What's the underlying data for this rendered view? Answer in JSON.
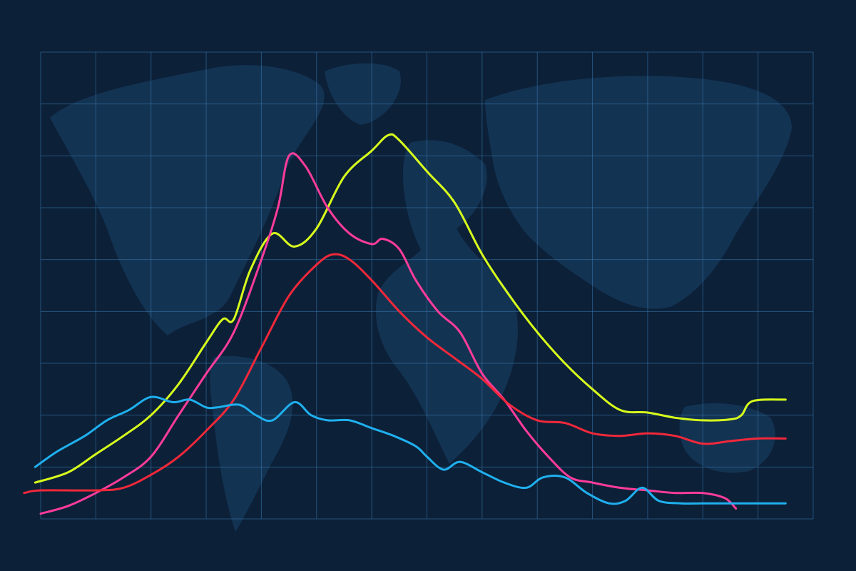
{
  "colors": {
    "background": "#0c2038",
    "land": "#163a5c",
    "grid": "#3a7bb0"
  },
  "chart_data": {
    "type": "line",
    "title": "",
    "xlabel": "",
    "ylabel": "",
    "grid": true,
    "legend": "none",
    "x_range": [
      0,
      14
    ],
    "y_range": [
      0,
      9
    ],
    "series": [
      {
        "color": "#d8ff1c",
        "points": [
          [
            -0.1,
            0.7
          ],
          [
            0.5,
            0.9
          ],
          [
            1,
            1.25
          ],
          [
            1.5,
            1.6
          ],
          [
            2,
            2.0
          ],
          [
            2.5,
            2.6
          ],
          [
            3,
            3.4
          ],
          [
            3.3,
            3.85
          ],
          [
            3.5,
            3.85
          ],
          [
            3.8,
            4.8
          ],
          [
            4.2,
            5.5
          ],
          [
            4.6,
            5.25
          ],
          [
            5,
            5.6
          ],
          [
            5.5,
            6.6
          ],
          [
            6,
            7.1
          ],
          [
            6.3,
            7.4
          ],
          [
            6.5,
            7.3
          ],
          [
            7,
            6.7
          ],
          [
            7.5,
            6.1
          ],
          [
            8,
            5.1
          ],
          [
            8.5,
            4.3
          ],
          [
            9,
            3.6
          ],
          [
            9.5,
            3.0
          ],
          [
            10,
            2.5
          ],
          [
            10.5,
            2.1
          ],
          [
            11,
            2.05
          ],
          [
            11.5,
            1.95
          ],
          [
            12,
            1.9
          ],
          [
            12.5,
            1.92
          ],
          [
            12.7,
            2.0
          ],
          [
            12.9,
            2.27
          ],
          [
            13.5,
            2.3
          ]
        ]
      },
      {
        "color": "#ff3c9a",
        "points": [
          [
            0,
            0.1
          ],
          [
            0.5,
            0.25
          ],
          [
            1,
            0.5
          ],
          [
            1.5,
            0.8
          ],
          [
            2,
            1.2
          ],
          [
            2.5,
            2.0
          ],
          [
            3,
            2.8
          ],
          [
            3.5,
            3.6
          ],
          [
            4,
            5.0
          ],
          [
            4.3,
            6.0
          ],
          [
            4.5,
            7.0
          ],
          [
            4.8,
            6.8
          ],
          [
            5.2,
            6.0
          ],
          [
            5.6,
            5.5
          ],
          [
            6,
            5.3
          ],
          [
            6.2,
            5.4
          ],
          [
            6.5,
            5.2
          ],
          [
            6.8,
            4.6
          ],
          [
            7.2,
            4.0
          ],
          [
            7.6,
            3.6
          ],
          [
            8,
            2.8
          ],
          [
            8.4,
            2.3
          ],
          [
            8.8,
            1.7
          ],
          [
            9.2,
            1.2
          ],
          [
            9.6,
            0.8
          ],
          [
            10,
            0.7
          ],
          [
            10.5,
            0.6
          ],
          [
            11,
            0.55
          ],
          [
            11.5,
            0.5
          ],
          [
            12,
            0.5
          ],
          [
            12.4,
            0.4
          ],
          [
            12.6,
            0.2
          ]
        ]
      },
      {
        "color": "#f0283a",
        "points": [
          [
            -0.3,
            0.5
          ],
          [
            0,
            0.55
          ],
          [
            1,
            0.55
          ],
          [
            1.5,
            0.6
          ],
          [
            2,
            0.85
          ],
          [
            2.5,
            1.2
          ],
          [
            3,
            1.7
          ],
          [
            3.5,
            2.3
          ],
          [
            4,
            3.3
          ],
          [
            4.5,
            4.3
          ],
          [
            5,
            4.9
          ],
          [
            5.3,
            5.1
          ],
          [
            5.6,
            5.0
          ],
          [
            6,
            4.6
          ],
          [
            6.5,
            4.0
          ],
          [
            7,
            3.5
          ],
          [
            7.5,
            3.1
          ],
          [
            8,
            2.7
          ],
          [
            8.5,
            2.2
          ],
          [
            9,
            1.9
          ],
          [
            9.5,
            1.85
          ],
          [
            10,
            1.65
          ],
          [
            10.5,
            1.6
          ],
          [
            11,
            1.65
          ],
          [
            11.5,
            1.6
          ],
          [
            12,
            1.45
          ],
          [
            12.5,
            1.5
          ],
          [
            13,
            1.55
          ],
          [
            13.5,
            1.55
          ]
        ]
      },
      {
        "color": "#1fb0ee",
        "points": [
          [
            -0.1,
            1.0
          ],
          [
            0.3,
            1.3
          ],
          [
            0.8,
            1.6
          ],
          [
            1.2,
            1.9
          ],
          [
            1.6,
            2.1
          ],
          [
            2,
            2.35
          ],
          [
            2.4,
            2.25
          ],
          [
            2.7,
            2.3
          ],
          [
            3,
            2.15
          ],
          [
            3.2,
            2.15
          ],
          [
            3.6,
            2.2
          ],
          [
            3.9,
            2.0
          ],
          [
            4.2,
            1.9
          ],
          [
            4.6,
            2.25
          ],
          [
            4.9,
            2.0
          ],
          [
            5.2,
            1.9
          ],
          [
            5.6,
            1.9
          ],
          [
            6,
            1.75
          ],
          [
            6.4,
            1.6
          ],
          [
            6.8,
            1.4
          ],
          [
            7,
            1.2
          ],
          [
            7.3,
            0.95
          ],
          [
            7.6,
            1.1
          ],
          [
            8,
            0.9
          ],
          [
            8.4,
            0.7
          ],
          [
            8.8,
            0.6
          ],
          [
            9.1,
            0.8
          ],
          [
            9.5,
            0.8
          ],
          [
            9.9,
            0.5
          ],
          [
            10.3,
            0.3
          ],
          [
            10.6,
            0.35
          ],
          [
            10.9,
            0.6
          ],
          [
            11.2,
            0.35
          ],
          [
            11.6,
            0.3
          ],
          [
            12,
            0.3
          ],
          [
            12.5,
            0.3
          ],
          [
            13,
            0.3
          ],
          [
            13.5,
            0.3
          ]
        ]
      }
    ]
  }
}
